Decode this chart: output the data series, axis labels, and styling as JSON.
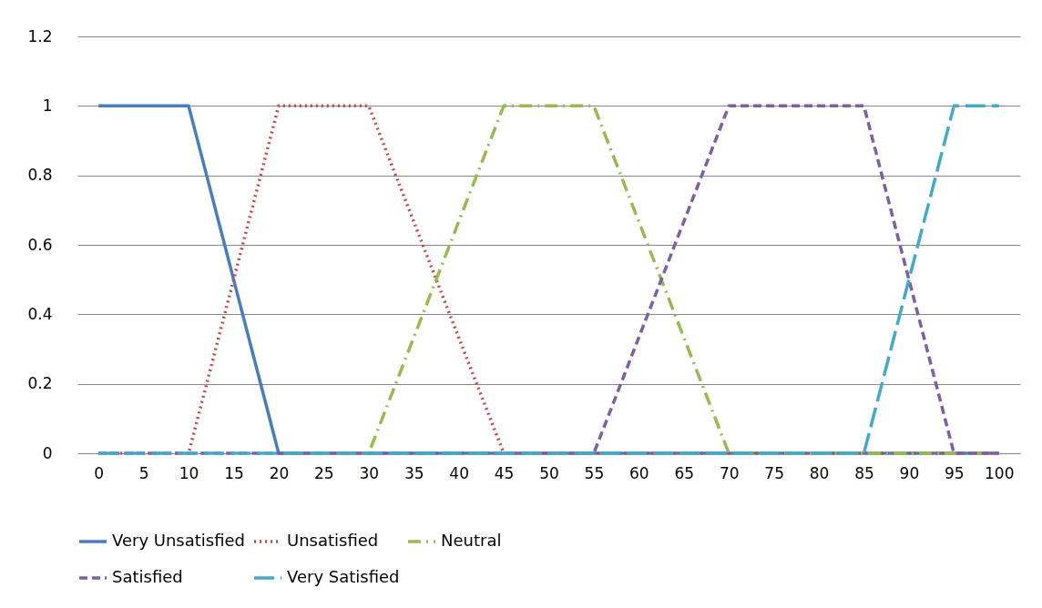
{
  "chart_data": {
    "type": "line",
    "categories": [
      "0",
      "5",
      "10",
      "15",
      "20",
      "25",
      "30",
      "35",
      "40",
      "45",
      "50",
      "55",
      "60",
      "65",
      "70",
      "75",
      "80",
      "85",
      "90",
      "95",
      "100"
    ],
    "ylim": [
      0,
      1.2
    ],
    "yticks": [
      0,
      0.2,
      0.4,
      0.6,
      0.8,
      1,
      1.2
    ],
    "grid": "y",
    "legend": "bottom",
    "marker": "none",
    "series": [
      {
        "name": "Very Unsatisfied",
        "color": "#4a7ebb",
        "line_style": "solid",
        "values": [
          1,
          1,
          1,
          0.5,
          0,
          0,
          0,
          0,
          0,
          0,
          0,
          0,
          0,
          0,
          0,
          0,
          0,
          0,
          0,
          0,
          0
        ]
      },
      {
        "name": "Unsatisfied",
        "color": "#be4b48",
        "line_style": "dotted",
        "values": [
          0,
          0,
          0,
          0.5,
          1,
          1,
          1,
          0.667,
          0.333,
          0,
          0,
          0,
          0,
          0,
          0,
          0,
          0,
          0,
          0,
          0,
          0
        ]
      },
      {
        "name": "Neutral",
        "color": "#98b954",
        "line_style": "dashdot",
        "values": [
          null,
          null,
          null,
          null,
          null,
          0,
          0,
          0.333,
          0.667,
          1,
          1,
          1,
          0.667,
          0.333,
          0,
          0,
          0,
          0,
          0,
          0,
          0
        ]
      },
      {
        "name": "Satisfied",
        "color": "#7d60a0",
        "line_style": "dashed",
        "values": [
          0,
          0,
          0,
          0,
          0,
          0,
          0,
          0,
          0,
          0,
          0,
          0,
          0.333,
          0.667,
          1,
          1,
          1,
          1,
          0.5,
          0,
          0
        ]
      },
      {
        "name": "Very Satisfied",
        "color": "#46aac5",
        "line_style": "longdash",
        "values": [
          0,
          0,
          0,
          0,
          0,
          0,
          0,
          0,
          0,
          0,
          0,
          0,
          0,
          0,
          0,
          0,
          0,
          0,
          0.5,
          1,
          1
        ]
      }
    ]
  }
}
